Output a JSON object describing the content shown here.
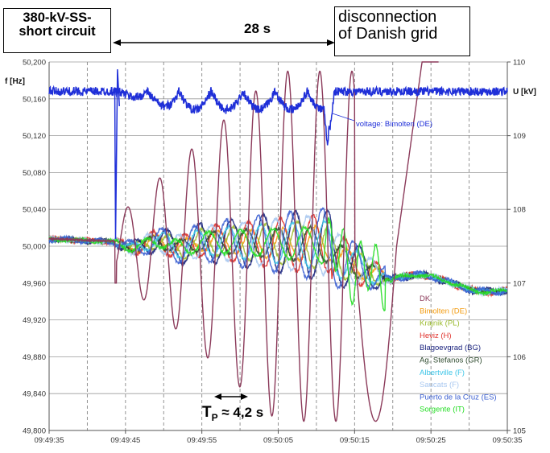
{
  "chart_data": {
    "type": "line",
    "title": "",
    "ylabel_left": "f [Hz]",
    "ylabel_right": "U [kV]",
    "x_ticks": [
      "09:49:35",
      "09:49:45",
      "09:49:55",
      "09:50:05",
      "09:50:15",
      "09:50:25",
      "09:50:35"
    ],
    "y_ticks_left": [
      "50,200",
      "50,160",
      "50,120",
      "50,080",
      "50,040",
      "50,000",
      "49,960",
      "49,920",
      "49,880",
      "49,840",
      "49,800"
    ],
    "y_ticks_right": [
      "110",
      "109",
      "108",
      "107",
      "106",
      "105"
    ],
    "ylim_left": [
      49.8,
      50.2
    ],
    "ylim_right": [
      105,
      110
    ],
    "xlim_seconds_after_093535": [
      0,
      60
    ],
    "grid": true,
    "legend_position": "bottom-right",
    "series": [
      {
        "name": "DK",
        "color": "#8b3a5a",
        "axis": "left",
        "events": {
          "oscillation_period_s": 4.2,
          "min_hz": 49.8,
          "max_hz": 50.2
        }
      },
      {
        "name": "Bimolten (DE)",
        "color": "#f39c12",
        "axis": "left"
      },
      {
        "name": "Krajnik (PL)",
        "color": "#9bbb2f",
        "axis": "left"
      },
      {
        "name": "Heviz (H)",
        "color": "#e0312b",
        "axis": "left"
      },
      {
        "name": "Blagoevgrad (BG)",
        "color": "#1a237e",
        "axis": "left"
      },
      {
        "name": "Ag. Stefanos (GR)",
        "color": "#2e4a2e",
        "axis": "left"
      },
      {
        "name": "Albertville (F)",
        "color": "#3fc6e8",
        "axis": "left"
      },
      {
        "name": "Saucats (F)",
        "color": "#a8c8f0",
        "axis": "left"
      },
      {
        "name": "Puerto de la Cruz (ES)",
        "color": "#3b5fd1",
        "axis": "left"
      },
      {
        "name": "Sorgente (IT)",
        "color": "#22dd22",
        "axis": "left"
      }
    ],
    "voltage_series": {
      "name": "voltage: Bimolten (DE)",
      "color": "#1f2fd8",
      "axis": "right",
      "baseline_kv": 109.6
    },
    "annotations": {
      "short_circuit": "380-kV-SS-\nshort circuit",
      "duration": "28 s",
      "disconnection": "disconnection\nof Danish grid",
      "voltage_label": "voltage: Bimolten (DE)",
      "period_label_main": "T",
      "period_label_sub": "P",
      "period_label_rest": " ≈ 4,2 s"
    }
  },
  "colors": {
    "grid": "#9a9a9a",
    "axis": "#555555",
    "vline": "#888888"
  }
}
